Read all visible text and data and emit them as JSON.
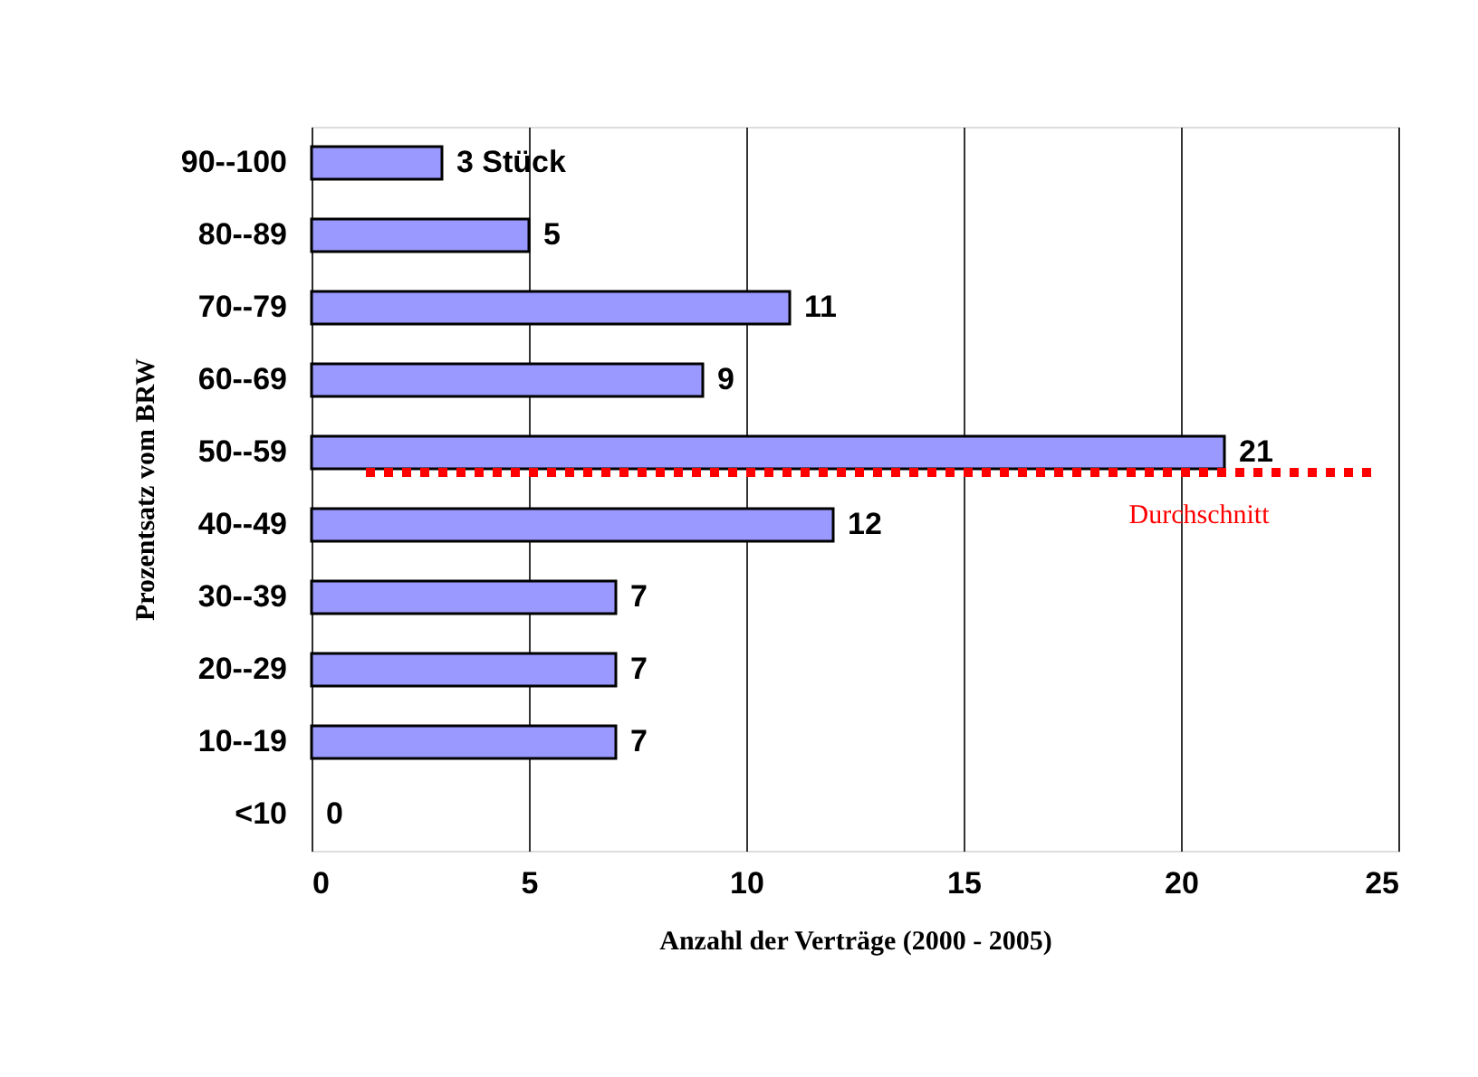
{
  "chart_data": {
    "type": "bar",
    "orientation": "horizontal",
    "categories": [
      "90--100",
      "80--89",
      "70--79",
      "60--69",
      "50--59",
      "40--49",
      "30--39",
      "20--29",
      "10--19",
      "<10"
    ],
    "values": [
      3,
      5,
      11,
      9,
      21,
      12,
      7,
      7,
      7,
      0
    ],
    "value_labels": [
      "3 Stück",
      "5",
      "11",
      "9",
      "21",
      "12",
      "7",
      "7",
      "7",
      "0"
    ],
    "color": "#9999ff",
    "xlabel": "Anzahl der Verträge (2000 - 2005)",
    "ylabel": "Prozentsatz vom BRW",
    "xlim": [
      0,
      25
    ],
    "xticks": [
      0,
      5,
      10,
      15,
      20,
      25
    ],
    "grid": "x",
    "ref_lines": [
      {
        "axis": "y",
        "value": "50--59",
        "label": "Durchschnitt",
        "color": "#ff0000",
        "line_style": "dotted"
      }
    ]
  }
}
